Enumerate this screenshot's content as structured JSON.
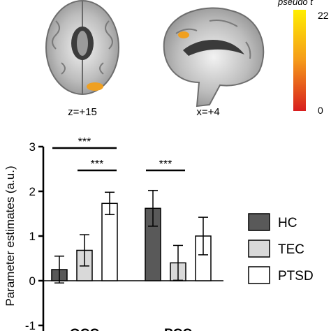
{
  "brain_panel": {
    "axial_label": "z=+15",
    "sagittal_label": "x=+4",
    "colorbar_title": "pseudo t",
    "colorbar_max": "22",
    "colorbar_min": "0",
    "colorbar_colors": [
      "#ffee00",
      "#f59a1a",
      "#d81e1e"
    ]
  },
  "chart_data": {
    "type": "bar",
    "groups": [
      "OCC",
      "PCC"
    ],
    "series": [
      {
        "name": "HC",
        "values": [
          0.25,
          1.62
        ],
        "errors": [
          0.3,
          0.4
        ],
        "color": "#595959"
      },
      {
        "name": "TEC",
        "values": [
          0.68,
          0.4
        ],
        "errors": [
          0.35,
          0.39
        ],
        "color": "#d9d9d9"
      },
      {
        "name": "PTSD",
        "values": [
          1.73,
          1.0
        ],
        "errors": [
          0.25,
          0.42
        ],
        "color": "#ffffff"
      }
    ],
    "ylabel": "Parameter estimates (a.u.)",
    "ylim": [
      -1,
      3
    ],
    "yticks": [
      -1,
      0,
      1,
      2,
      3
    ],
    "significance": [
      {
        "group": "OCC",
        "from": "HC",
        "to": "PTSD",
        "label": "***"
      },
      {
        "group": "OCC",
        "from": "TEC",
        "to": "PTSD",
        "label": "***"
      },
      {
        "group": "PCC",
        "from": "HC",
        "to": "TEC",
        "label": "***"
      }
    ],
    "legend_position": "right"
  }
}
